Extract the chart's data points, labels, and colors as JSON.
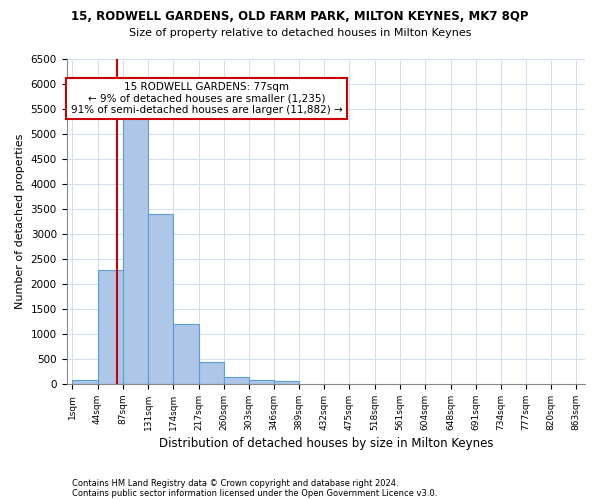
{
  "title1": "15, RODWELL GARDENS, OLD FARM PARK, MILTON KEYNES, MK7 8QP",
  "title2": "Size of property relative to detached houses in Milton Keynes",
  "xlabel": "Distribution of detached houses by size in Milton Keynes",
  "ylabel": "Number of detached properties",
  "footer1": "Contains HM Land Registry data © Crown copyright and database right 2024.",
  "footer2": "Contains public sector information licensed under the Open Government Licence v3.0.",
  "annotation_title": "15 RODWELL GARDENS: 77sqm",
  "annotation_line1": "← 9% of detached houses are smaller (1,235)",
  "annotation_line2": "91% of semi-detached houses are larger (11,882) →",
  "property_size": 77,
  "bar_color": "#aec6e8",
  "bar_edge_color": "#5a9fd4",
  "vline_color": "#cc0000",
  "annotation_box_color": "#cc0000",
  "background_color": "#ffffff",
  "grid_color": "#d0dff0",
  "bins": [
    1,
    44,
    87,
    131,
    174,
    217,
    260,
    303,
    346,
    389,
    432,
    475,
    518,
    561,
    604,
    648,
    691,
    734,
    777,
    820,
    863
  ],
  "bin_labels": [
    "1sqm",
    "44sqm",
    "87sqm",
    "131sqm",
    "174sqm",
    "217sqm",
    "260sqm",
    "303sqm",
    "346sqm",
    "389sqm",
    "432sqm",
    "475sqm",
    "518sqm",
    "561sqm",
    "604sqm",
    "648sqm",
    "691sqm",
    "734sqm",
    "777sqm",
    "820sqm",
    "863sqm"
  ],
  "counts": [
    75,
    2280,
    5350,
    3400,
    1200,
    430,
    130,
    80,
    55,
    0,
    0,
    0,
    0,
    0,
    0,
    0,
    0,
    0,
    0,
    0
  ],
  "ylim": [
    0,
    6500
  ],
  "yticks": [
    0,
    500,
    1000,
    1500,
    2000,
    2500,
    3000,
    3500,
    4000,
    4500,
    5000,
    5500,
    6000,
    6500
  ]
}
